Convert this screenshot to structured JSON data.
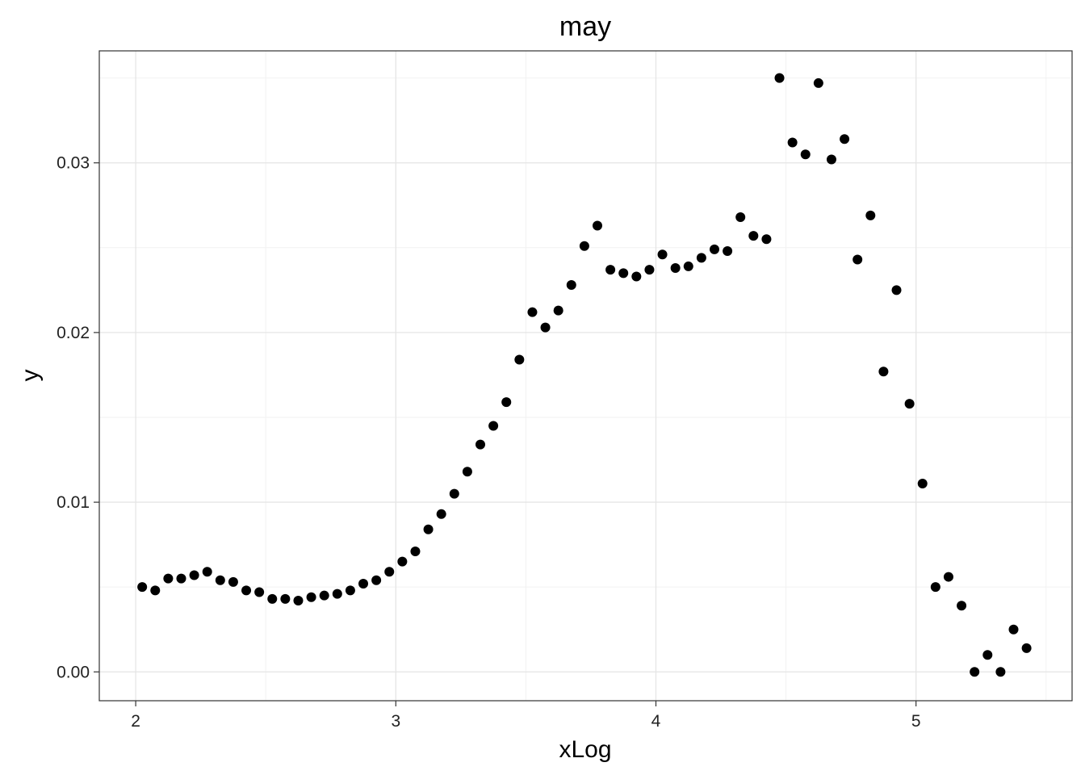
{
  "chart_data": {
    "type": "scatter",
    "title": "may",
    "xlabel": "xLog",
    "ylabel": "y",
    "xlim": [
      1.86,
      5.6
    ],
    "ylim": [
      -0.0017,
      0.0366
    ],
    "x_ticks": [
      2,
      3,
      4,
      5
    ],
    "x_tick_labels": [
      "2",
      "3",
      "4",
      "5"
    ],
    "y_ticks": [
      0,
      0.01,
      0.02,
      0.03
    ],
    "y_tick_labels": [
      "0.00",
      "0.01",
      "0.02",
      "0.03"
    ],
    "grid": true,
    "theme": "black-and-white",
    "point_color": "#000000",
    "points": [
      {
        "x": 2.025,
        "y": 0.005
      },
      {
        "x": 2.075,
        "y": 0.0048
      },
      {
        "x": 2.125,
        "y": 0.0055
      },
      {
        "x": 2.175,
        "y": 0.0055
      },
      {
        "x": 2.225,
        "y": 0.0057
      },
      {
        "x": 2.275,
        "y": 0.0059
      },
      {
        "x": 2.325,
        "y": 0.0054
      },
      {
        "x": 2.375,
        "y": 0.0053
      },
      {
        "x": 2.425,
        "y": 0.0048
      },
      {
        "x": 2.475,
        "y": 0.0047
      },
      {
        "x": 2.525,
        "y": 0.0043
      },
      {
        "x": 2.575,
        "y": 0.0043
      },
      {
        "x": 2.625,
        "y": 0.0042
      },
      {
        "x": 2.675,
        "y": 0.0044
      },
      {
        "x": 2.725,
        "y": 0.0045
      },
      {
        "x": 2.775,
        "y": 0.0046
      },
      {
        "x": 2.825,
        "y": 0.0048
      },
      {
        "x": 2.875,
        "y": 0.0052
      },
      {
        "x": 2.925,
        "y": 0.0054
      },
      {
        "x": 2.975,
        "y": 0.0059
      },
      {
        "x": 3.025,
        "y": 0.0065
      },
      {
        "x": 3.075,
        "y": 0.0071
      },
      {
        "x": 3.125,
        "y": 0.0084
      },
      {
        "x": 3.175,
        "y": 0.0093
      },
      {
        "x": 3.225,
        "y": 0.0105
      },
      {
        "x": 3.275,
        "y": 0.0118
      },
      {
        "x": 3.325,
        "y": 0.0134
      },
      {
        "x": 3.375,
        "y": 0.0145
      },
      {
        "x": 3.425,
        "y": 0.0159
      },
      {
        "x": 3.475,
        "y": 0.0184
      },
      {
        "x": 3.525,
        "y": 0.0212
      },
      {
        "x": 3.575,
        "y": 0.0203
      },
      {
        "x": 3.625,
        "y": 0.0213
      },
      {
        "x": 3.675,
        "y": 0.0228
      },
      {
        "x": 3.725,
        "y": 0.0251
      },
      {
        "x": 3.775,
        "y": 0.0263
      },
      {
        "x": 3.825,
        "y": 0.0237
      },
      {
        "x": 3.875,
        "y": 0.0235
      },
      {
        "x": 3.925,
        "y": 0.0233
      },
      {
        "x": 3.975,
        "y": 0.0237
      },
      {
        "x": 4.025,
        "y": 0.0246
      },
      {
        "x": 4.075,
        "y": 0.0238
      },
      {
        "x": 4.125,
        "y": 0.0239
      },
      {
        "x": 4.175,
        "y": 0.0244
      },
      {
        "x": 4.225,
        "y": 0.0249
      },
      {
        "x": 4.275,
        "y": 0.0248
      },
      {
        "x": 4.325,
        "y": 0.0268
      },
      {
        "x": 4.375,
        "y": 0.0257
      },
      {
        "x": 4.425,
        "y": 0.0255
      },
      {
        "x": 4.475,
        "y": 0.035
      },
      {
        "x": 4.525,
        "y": 0.0312
      },
      {
        "x": 4.575,
        "y": 0.0305
      },
      {
        "x": 4.625,
        "y": 0.0347
      },
      {
        "x": 4.675,
        "y": 0.0302
      },
      {
        "x": 4.725,
        "y": 0.0314
      },
      {
        "x": 4.775,
        "y": 0.0243
      },
      {
        "x": 4.825,
        "y": 0.0269
      },
      {
        "x": 4.875,
        "y": 0.0177
      },
      {
        "x": 4.925,
        "y": 0.0225
      },
      {
        "x": 4.975,
        "y": 0.0158
      },
      {
        "x": 5.025,
        "y": 0.0111
      },
      {
        "x": 5.075,
        "y": 0.005
      },
      {
        "x": 5.125,
        "y": 0.0056
      },
      {
        "x": 5.175,
        "y": 0.0039
      },
      {
        "x": 5.225,
        "y": 0.0
      },
      {
        "x": 5.275,
        "y": 0.001
      },
      {
        "x": 5.325,
        "y": 0.0
      },
      {
        "x": 5.375,
        "y": 0.0025
      },
      {
        "x": 5.425,
        "y": 0.0014
      }
    ]
  }
}
